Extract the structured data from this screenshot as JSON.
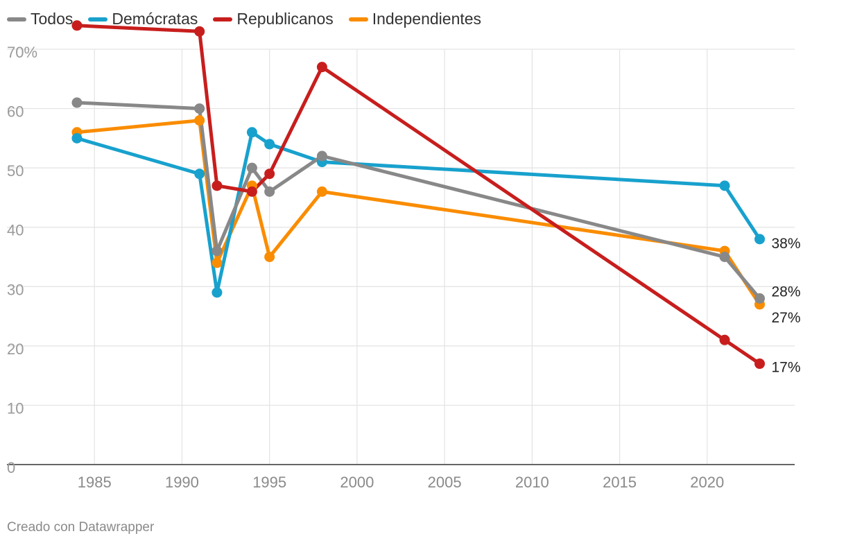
{
  "legend": [
    {
      "label": "Todos",
      "color": "#888888"
    },
    {
      "label": "Demócratas",
      "color": "#18a1cd"
    },
    {
      "label": "Republicanos",
      "color": "#c71e1d"
    },
    {
      "label": "Independientes",
      "color": "#fa8c00"
    }
  ],
  "footer": "Creado con Datawrapper",
  "chart_data": {
    "type": "line",
    "xlim": [
      1980,
      2025
    ],
    "ylim": [
      0,
      70
    ],
    "x_ticks": [
      1985,
      1990,
      1995,
      2000,
      2005,
      2010,
      2015,
      2020
    ],
    "y_ticks": [
      0,
      10,
      20,
      30,
      40,
      50,
      60,
      70
    ],
    "y_tick_labels": [
      "0",
      "10",
      "20",
      "30",
      "40",
      "50",
      "60",
      "70%"
    ],
    "grid": true,
    "legend_position": "top-left",
    "series": [
      {
        "name": "Todos",
        "color": "#888888",
        "x": [
          1984,
          1991,
          1992,
          1994,
          1995,
          1998,
          2021,
          2023
        ],
        "values": [
          61,
          60,
          36,
          50,
          46,
          52,
          35,
          28
        ]
      },
      {
        "name": "Demócratas",
        "color": "#18a1cd",
        "x": [
          1984,
          1991,
          1992,
          1994,
          1995,
          1998,
          2021,
          2023
        ],
        "values": [
          55,
          49,
          29,
          56,
          54,
          51,
          47,
          38
        ]
      },
      {
        "name": "Republicanos",
        "color": "#c71e1d",
        "x": [
          1984,
          1991,
          1992,
          1994,
          1995,
          1998,
          2021,
          2023
        ],
        "values": [
          74,
          73,
          47,
          46,
          49,
          67,
          21,
          17
        ]
      },
      {
        "name": "Independientes",
        "color": "#fa8c00",
        "x": [
          1984,
          1991,
          1992,
          1994,
          1995,
          1998,
          2021,
          2023
        ],
        "values": [
          56,
          58,
          34,
          47,
          35,
          46,
          36,
          27
        ]
      }
    ],
    "end_labels": [
      {
        "series": "Demócratas",
        "text": "38%"
      },
      {
        "series": "Todos",
        "text": "28%"
      },
      {
        "series": "Independientes",
        "text": "27%"
      },
      {
        "series": "Republicanos",
        "text": "17%"
      }
    ]
  }
}
